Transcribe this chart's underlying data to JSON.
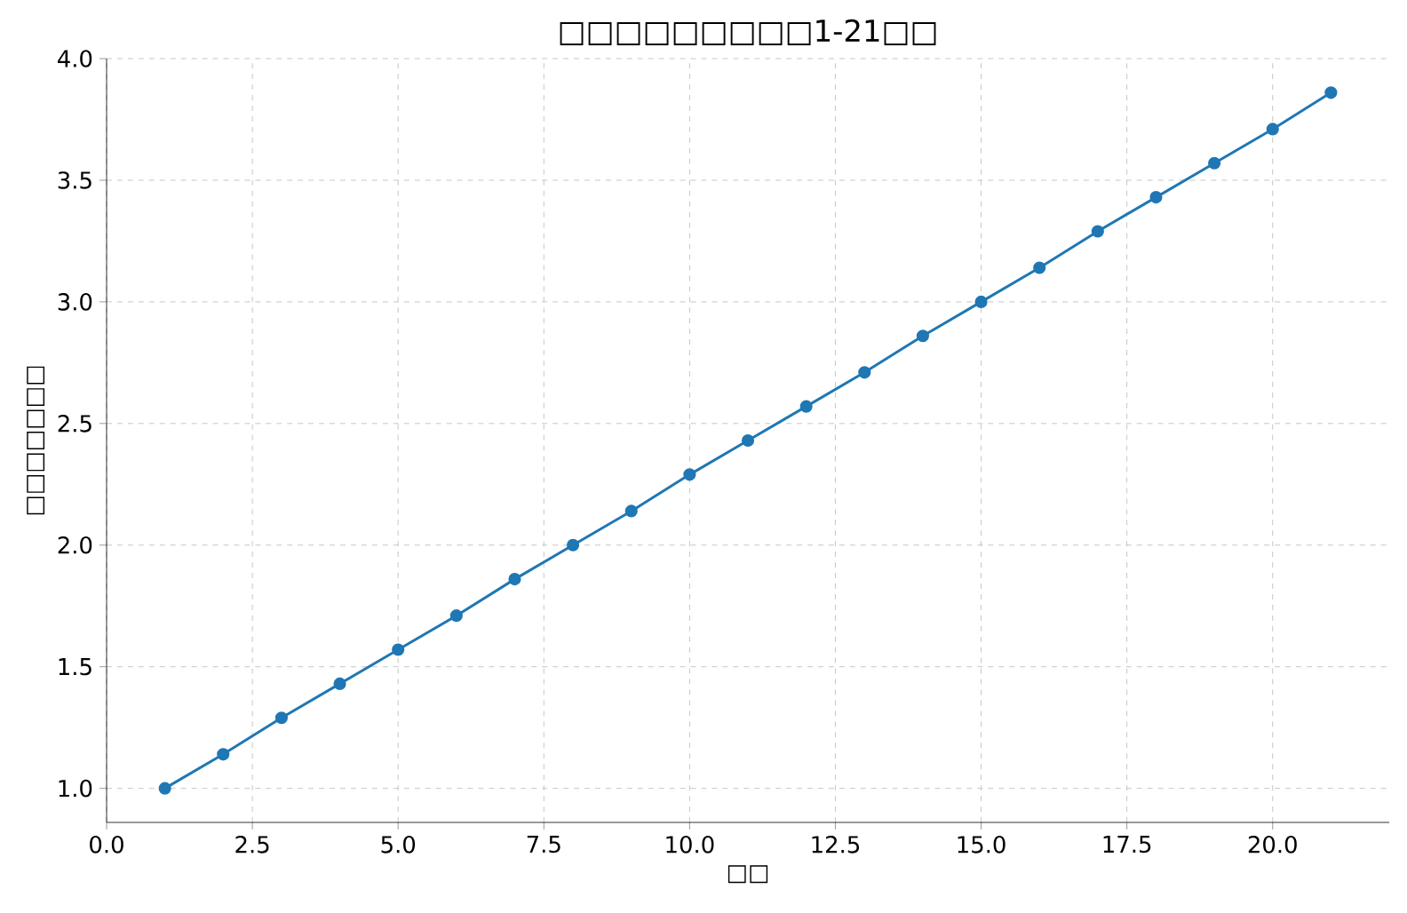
{
  "chart_data": {
    "type": "line",
    "title": "□□□□□□□□□1-21□□",
    "xlabel": "□□",
    "ylabel": "□□□□□□□",
    "x": [
      1,
      2,
      3,
      4,
      5,
      6,
      7,
      8,
      9,
      10,
      11,
      12,
      13,
      14,
      15,
      16,
      17,
      18,
      19,
      20,
      21
    ],
    "series": [
      {
        "color": "#1f77b4",
        "values": [
          1.0,
          1.14,
          1.29,
          1.43,
          1.57,
          1.71,
          1.86,
          2.0,
          2.14,
          2.29,
          2.43,
          2.57,
          2.71,
          2.86,
          3.0,
          3.14,
          3.29,
          3.43,
          3.57,
          3.71,
          3.86
        ]
      }
    ],
    "xlim": [
      0,
      22
    ],
    "ylim": [
      0.86,
      4.0
    ],
    "xticks": [
      {
        "value": 0,
        "label": "0.0"
      },
      {
        "value": 2.5,
        "label": "2.5"
      },
      {
        "value": 5,
        "label": "5.0"
      },
      {
        "value": 7.5,
        "label": "7.5"
      },
      {
        "value": 10,
        "label": "10.0"
      },
      {
        "value": 12.5,
        "label": "12.5"
      },
      {
        "value": 15,
        "label": "15.0"
      },
      {
        "value": 17.5,
        "label": "17.5"
      },
      {
        "value": 20,
        "label": "20.0"
      }
    ],
    "yticks": [
      {
        "value": 1,
        "label": "1.0"
      },
      {
        "value": 1.5,
        "label": "1.5"
      },
      {
        "value": 2,
        "label": "2.0"
      },
      {
        "value": 2.5,
        "label": "2.5"
      },
      {
        "value": 3,
        "label": "3.0"
      },
      {
        "value": 3.5,
        "label": "3.5"
      },
      {
        "value": 4,
        "label": "4.0"
      }
    ],
    "grid": true,
    "marker": "circle",
    "line_style": "solid"
  }
}
